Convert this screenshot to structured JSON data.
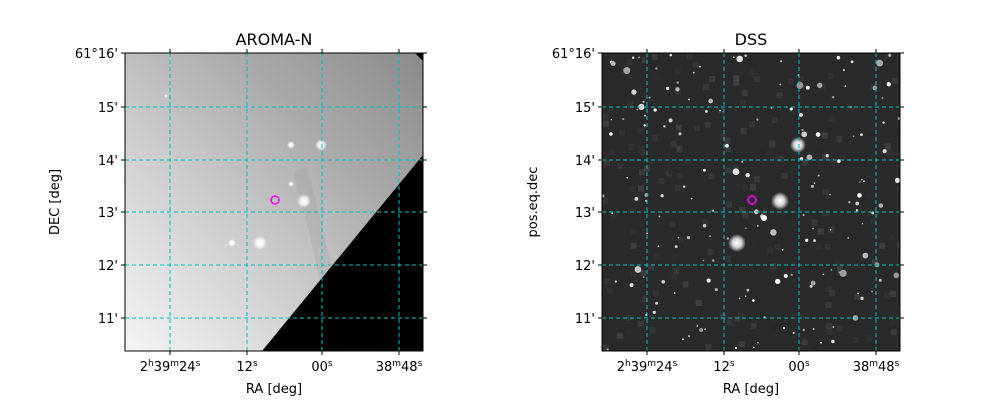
{
  "chart_data": [
    {
      "type": "image",
      "title": "AROMA-N",
      "xlabel": "RA [deg]",
      "ylabel": "DEC [deg]",
      "x_ticks": [
        "2h39m24s",
        "12s",
        "00s",
        "38m48s"
      ],
      "y_ticks": [
        "11'",
        "12'",
        "13'",
        "14'",
        "15'",
        "61°16'"
      ],
      "grid": true,
      "grid_color": "#00c0c0",
      "marker_color": "#ff00ff",
      "image_style": "grayscale gradient, bright lower-left, black masked triangle lower-right"
    },
    {
      "type": "image",
      "title": "DSS",
      "xlabel": "RA [deg]",
      "ylabel": "pos.eq.dec",
      "x_ticks": [
        "2h39m24s",
        "12s",
        "00s",
        "38m48s"
      ],
      "y_ticks": [
        "11'",
        "12'",
        "13'",
        "14'",
        "15'",
        "61°16'"
      ],
      "grid": true,
      "grid_color": "#00c0c0",
      "marker_color": "#ff00ff",
      "image_style": "dark star field"
    }
  ]
}
